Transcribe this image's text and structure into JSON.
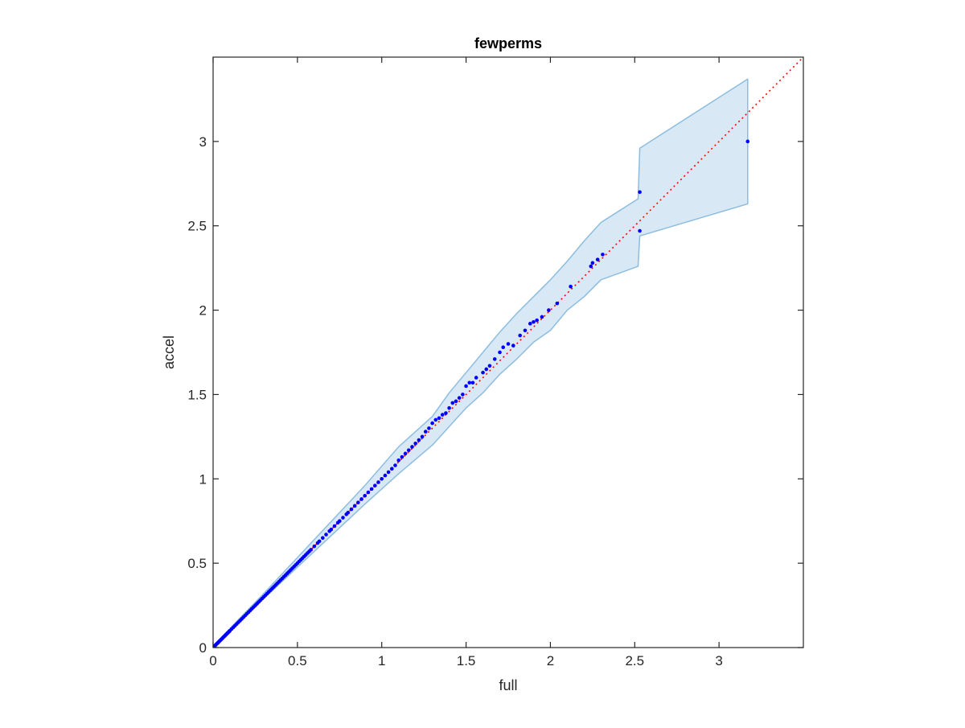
{
  "chart_data": {
    "type": "scatter",
    "title": "fewperms",
    "xlabel": "full",
    "ylabel": "accel",
    "xlim": [
      0,
      3.5
    ],
    "ylim": [
      0,
      3.5
    ],
    "xticks": [
      0,
      0.5,
      1,
      1.5,
      2,
      2.5,
      3
    ],
    "yticks": [
      0,
      0.5,
      1,
      1.5,
      2,
      2.5,
      3
    ],
    "xtick_labels": [
      "0",
      "0.5",
      "1",
      "1.5",
      "2",
      "2.5",
      "3"
    ],
    "ytick_labels": [
      "0",
      "0.5",
      "1",
      "1.5",
      "2",
      "2.5",
      "3"
    ],
    "grid": false,
    "box": true,
    "colors": {
      "points": "#0000ff",
      "reference_line": "#ff0000",
      "band_fill": "#d9e8f5",
      "band_edge": "#8cbde0",
      "axes": "#262626"
    },
    "series": [
      {
        "kind": "points",
        "x": [
          0.005,
          0.01,
          0.015,
          0.02,
          0.025,
          0.03,
          0.035,
          0.04,
          0.045,
          0.05,
          0.055,
          0.06,
          0.065,
          0.07,
          0.075,
          0.08,
          0.085,
          0.09,
          0.095,
          0.1,
          0.11,
          0.12,
          0.13,
          0.14,
          0.15,
          0.16,
          0.17,
          0.18,
          0.19,
          0.2,
          0.21,
          0.22,
          0.23,
          0.24,
          0.25,
          0.26,
          0.27,
          0.28,
          0.29,
          0.3,
          0.31,
          0.32,
          0.33,
          0.34,
          0.35,
          0.36,
          0.37,
          0.38,
          0.39,
          0.4,
          0.41,
          0.42,
          0.43,
          0.44,
          0.45,
          0.46,
          0.47,
          0.48,
          0.49,
          0.5,
          0.51,
          0.52,
          0.53,
          0.54,
          0.55,
          0.56,
          0.57,
          0.58,
          0.6,
          0.62,
          0.63,
          0.65,
          0.67,
          0.69,
          0.7,
          0.72,
          0.74,
          0.75,
          0.77,
          0.79,
          0.8,
          0.82,
          0.84,
          0.86,
          0.88,
          0.9,
          0.92,
          0.94,
          0.96,
          0.98,
          1.0,
          1.02,
          1.04,
          1.06,
          1.08,
          1.1,
          1.12,
          1.14,
          1.16,
          1.18,
          1.2,
          1.22,
          1.24,
          1.26,
          1.28,
          1.3,
          1.32,
          1.34,
          1.36,
          1.38,
          1.4,
          1.42,
          1.44,
          1.46,
          1.48,
          1.5,
          1.52,
          1.54,
          1.56,
          1.6,
          1.62,
          1.64,
          1.67,
          1.7,
          1.72,
          1.75,
          1.78,
          1.82,
          1.85,
          1.88,
          1.9,
          1.92,
          1.95,
          1.99,
          2.04,
          2.12,
          2.24,
          2.25,
          2.28,
          2.31,
          2.53,
          2.53,
          3.17
        ],
        "y": [
          0.005,
          0.01,
          0.015,
          0.02,
          0.025,
          0.03,
          0.035,
          0.04,
          0.045,
          0.05,
          0.055,
          0.06,
          0.065,
          0.07,
          0.075,
          0.08,
          0.085,
          0.09,
          0.095,
          0.1,
          0.11,
          0.12,
          0.13,
          0.14,
          0.15,
          0.16,
          0.17,
          0.18,
          0.19,
          0.2,
          0.21,
          0.22,
          0.23,
          0.24,
          0.25,
          0.26,
          0.27,
          0.28,
          0.29,
          0.3,
          0.31,
          0.32,
          0.33,
          0.34,
          0.35,
          0.36,
          0.37,
          0.38,
          0.39,
          0.4,
          0.41,
          0.42,
          0.43,
          0.44,
          0.45,
          0.46,
          0.47,
          0.48,
          0.49,
          0.5,
          0.51,
          0.52,
          0.53,
          0.54,
          0.55,
          0.56,
          0.57,
          0.58,
          0.6,
          0.62,
          0.63,
          0.65,
          0.67,
          0.69,
          0.7,
          0.72,
          0.74,
          0.75,
          0.77,
          0.79,
          0.8,
          0.82,
          0.84,
          0.86,
          0.88,
          0.9,
          0.92,
          0.94,
          0.96,
          0.98,
          1.0,
          1.02,
          1.04,
          1.06,
          1.08,
          1.11,
          1.13,
          1.15,
          1.17,
          1.19,
          1.21,
          1.23,
          1.25,
          1.28,
          1.3,
          1.33,
          1.35,
          1.36,
          1.38,
          1.39,
          1.42,
          1.45,
          1.46,
          1.48,
          1.5,
          1.55,
          1.57,
          1.57,
          1.6,
          1.63,
          1.65,
          1.67,
          1.71,
          1.75,
          1.78,
          1.8,
          1.79,
          1.85,
          1.88,
          1.92,
          1.93,
          1.94,
          1.96,
          2.0,
          2.04,
          2.14,
          2.26,
          2.28,
          2.3,
          2.33,
          2.7,
          2.47,
          3.0
        ]
      },
      {
        "kind": "reference_line",
        "x": [
          0,
          3.5
        ],
        "y": [
          0,
          3.5
        ]
      },
      {
        "kind": "band",
        "x": [
          0,
          0.3,
          0.6,
          0.9,
          1.1,
          1.3,
          1.4,
          1.5,
          1.6,
          1.7,
          1.8,
          1.9,
          2.0,
          2.1,
          2.2,
          2.3,
          2.52,
          2.53,
          3.17
        ],
        "upper": [
          0.01,
          0.32,
          0.64,
          0.96,
          1.19,
          1.37,
          1.51,
          1.63,
          1.75,
          1.87,
          1.98,
          2.08,
          2.18,
          2.29,
          2.41,
          2.52,
          2.66,
          2.96,
          3.37
        ],
        "lower": [
          0,
          0.29,
          0.57,
          0.85,
          1.03,
          1.2,
          1.31,
          1.42,
          1.51,
          1.62,
          1.71,
          1.81,
          1.88,
          2.0,
          2.08,
          2.18,
          2.26,
          2.44,
          2.63
        ]
      }
    ]
  }
}
